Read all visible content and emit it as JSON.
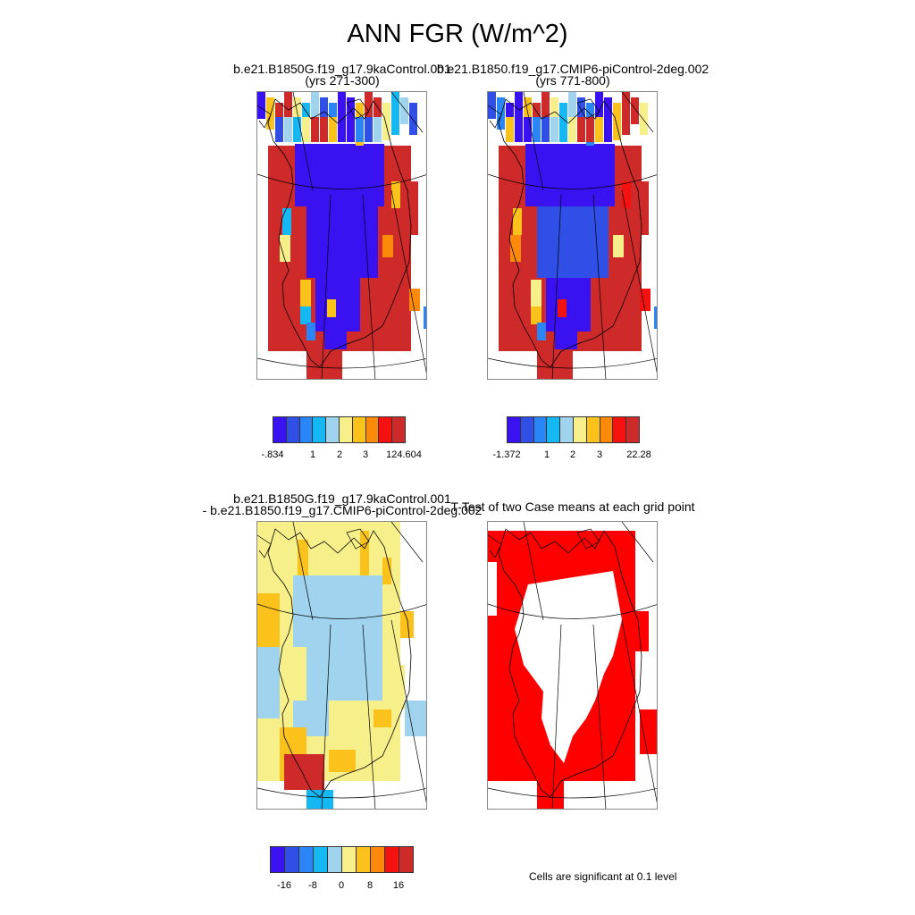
{
  "title": "ANN FGR (W/m^2)",
  "panels": {
    "case1": {
      "title_line1": "b.e21.B1850G.f19_g17.9kaControl.001",
      "title_line2": "(yrs 271-300)",
      "colorbar": {
        "colors": [
          "#3a12f2",
          "#2f4fe6",
          "#2a86f6",
          "#16b8f4",
          "#a0d4ee",
          "#f7f08a",
          "#fcc21c",
          "#fb8a0a",
          "#f41210",
          "#cf2a2a"
        ],
        "ticks": [
          "-.834",
          "1",
          "2",
          "3",
          "124.604"
        ]
      }
    },
    "case2": {
      "title_line1": "b.e21.B1850.f19_g17.CMIP6-piControl-2deg.002",
      "title_line2": "(yrs 771-800)",
      "colorbar": {
        "colors": [
          "#3a12f2",
          "#2f4fe6",
          "#2a86f6",
          "#16b8f4",
          "#a0d4ee",
          "#f7f08a",
          "#fcc21c",
          "#fb8a0a",
          "#f41210",
          "#cf2a2a"
        ],
        "ticks": [
          "-1.372",
          "1",
          "2",
          "3",
          "22.28"
        ]
      }
    },
    "difference": {
      "title_line1": "b.e21.B1850G.f19_g17.9kaControl.001",
      "title_line2": "- b.e21.B1850.f19_g17.CMIP6-piControl-2deg.002",
      "colorbar": {
        "colors": [
          "#3a12f2",
          "#2f4fe6",
          "#2a86f6",
          "#16b8f4",
          "#a0d4ee",
          "#f7f08a",
          "#fcc21c",
          "#fb8a0a",
          "#f41210",
          "#cf2a2a"
        ],
        "ticks": [
          "-16",
          "-8",
          "0",
          "8",
          "16"
        ]
      }
    },
    "ttest": {
      "title": "T-Test of two Case means at each grid point",
      "note": "Cells are significant at 0.1 level",
      "sig_color": "#ff0000"
    }
  }
}
